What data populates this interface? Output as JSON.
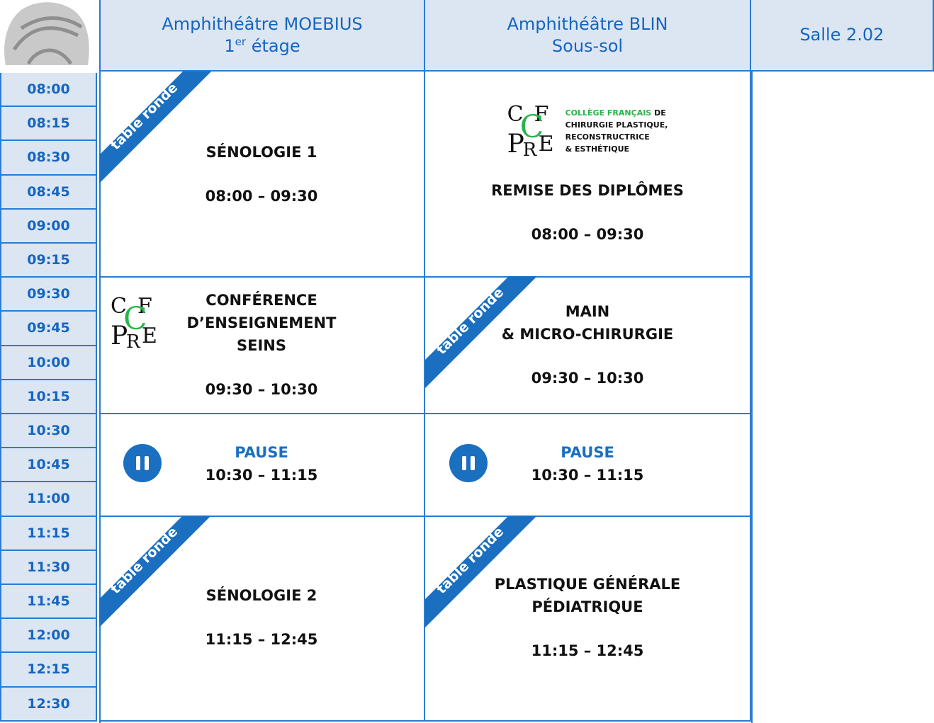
{
  "header": {
    "rooms": [
      {
        "name": "Amphithéâtre MOEBIUS",
        "floor_number": "1",
        "floor_suffix": "er",
        "floor": "étage"
      },
      {
        "name": "Amphithéâtre  BLIN",
        "floor": "Sous-sol"
      },
      {
        "name": "Salle 2.02"
      }
    ]
  },
  "times": [
    "08:00",
    "08:15",
    "08:30",
    "08:45",
    "09:00",
    "09:15",
    "09:30",
    "09:45",
    "10:00",
    "10:15",
    "10:30",
    "10:45",
    "11:00",
    "11:15",
    "11:30",
    "11:45",
    "12:00",
    "12:15",
    "12:30"
  ],
  "columns": [
    {
      "sessions": [
        {
          "tag": "table ronde",
          "title_lines": [
            "SÉNOLOGIE 1"
          ],
          "time": "08:00 – 09:30"
        },
        {
          "logo": [
            "C",
            "F",
            "C",
            "P",
            "R",
            "E"
          ],
          "title_lines": [
            "CONFÉRENCE",
            "D’ENSEIGNEMENT",
            "SEINS"
          ],
          "time": "09:30 – 10:30"
        },
        {
          "pause": "PAUSE",
          "time": "10:30 – 11:15"
        },
        {
          "tag": "table ronde",
          "title_lines": [
            "SÉNOLOGIE 2"
          ],
          "time": "11:15 – 12:45"
        }
      ]
    },
    {
      "sessions": [
        {
          "logo": [
            "C",
            "F",
            "C",
            "P",
            "R",
            "E"
          ],
          "college": {
            "highlight": "COLLÈGE FRANÇAIS",
            "rest": "DE",
            "lines": [
              "CHIRURGIE PLASTIQUE,",
              "RECONSTRUCTRICE",
              "& ESTHÉTIQUE"
            ]
          },
          "title_lines": [
            "REMISE DES DIPLÔMES"
          ],
          "time": "08:00 – 09:30"
        },
        {
          "tag": "table ronde",
          "title_lines": [
            "MAIN",
            "& MICRO-CHIRURGIE"
          ],
          "time": "09:30 – 10:30"
        },
        {
          "pause": "PAUSE",
          "time": "10:30 – 11:15"
        },
        {
          "tag": "table ronde",
          "title_lines": [
            "PLASTIQUE GÉNÉRALE",
            "PÉDIATRIQUE"
          ],
          "time": "11:15 – 12:45"
        }
      ]
    }
  ]
}
